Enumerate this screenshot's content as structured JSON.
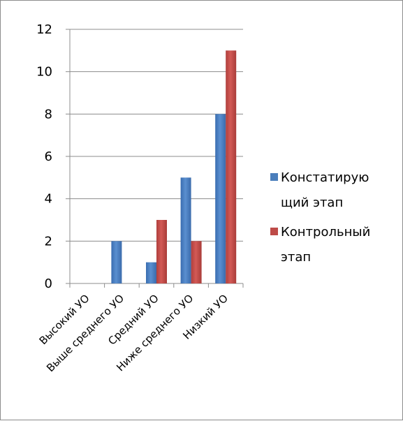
{
  "chart_data": {
    "type": "bar",
    "categories": [
      "Высокий УО",
      "Выше среднего УО",
      "Средний УО",
      "Ниже среднего УО",
      "Низкий УО"
    ],
    "series": [
      {
        "name": "Констатирующий этап",
        "legend_lines": [
          "Констатирую",
          "щий этап"
        ],
        "values": [
          0,
          2,
          1,
          5,
          8
        ],
        "color": "#4a7ebb"
      },
      {
        "name": "Контрольный этап",
        "legend_lines": [
          "Контрольный",
          "этап"
        ],
        "values": [
          0,
          0,
          3,
          2,
          11
        ],
        "color": "#be4b48"
      }
    ],
    "yticks": [
      0,
      2,
      4,
      6,
      8,
      10,
      12
    ],
    "ylim": [
      0,
      12
    ],
    "grid": true,
    "legend_position": "right",
    "title": "",
    "xlabel": "",
    "ylabel": ""
  }
}
